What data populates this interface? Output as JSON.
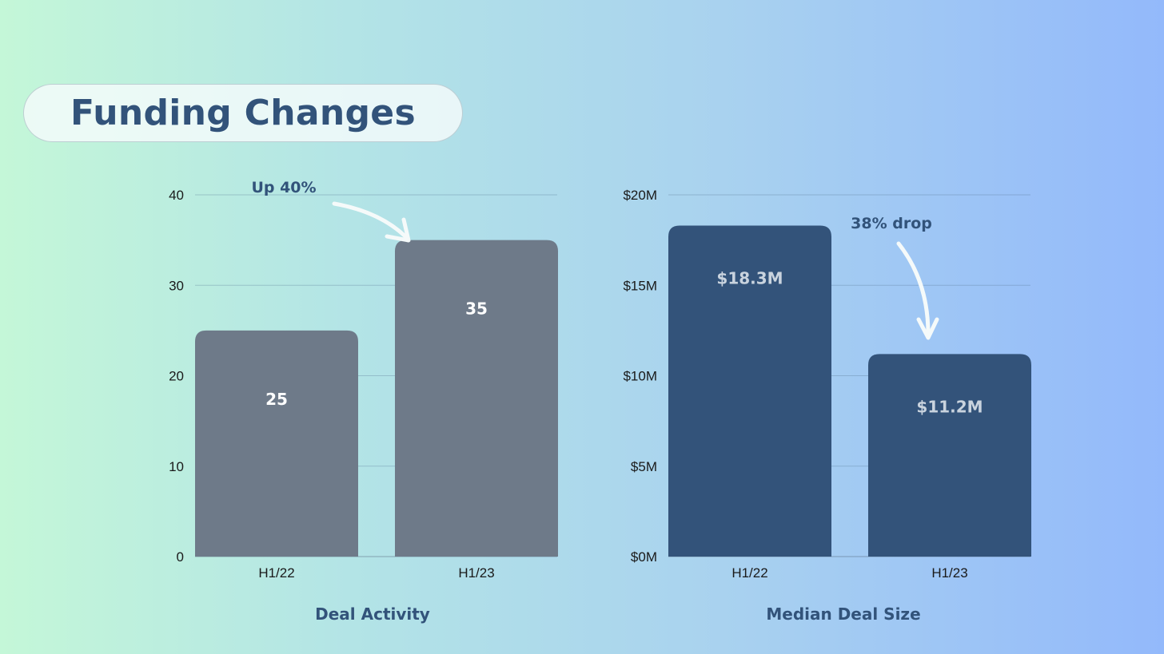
{
  "page": {
    "title": "Funding Changes"
  },
  "chart_data": [
    {
      "type": "bar",
      "title": "Deal Activity",
      "categories": [
        "H1/22",
        "H1/23"
      ],
      "values": [
        25,
        35
      ],
      "value_labels": [
        "25",
        "35"
      ],
      "yticks": [
        0,
        10,
        20,
        30,
        40
      ],
      "ytick_labels": [
        "0",
        "10",
        "20",
        "30",
        "40"
      ],
      "ylim": [
        0,
        40
      ],
      "grid": true,
      "bar_color": "#6e7a89",
      "label_color": "#ffffff",
      "annotation": "Up 40%"
    },
    {
      "type": "bar",
      "title": "Median Deal Size",
      "categories": [
        "H1/22",
        "H1/23"
      ],
      "values": [
        18.3,
        11.2
      ],
      "value_labels": [
        "$18.3M",
        "$11.2M"
      ],
      "yticks": [
        0,
        5,
        10,
        15,
        20
      ],
      "ytick_labels": [
        "$0M",
        "$5M",
        "$10M",
        "$15M",
        "$20M"
      ],
      "ylim": [
        0,
        20
      ],
      "grid": true,
      "bar_color": "#33537a",
      "label_color": "#c9d3de",
      "annotation": "38% drop"
    }
  ]
}
